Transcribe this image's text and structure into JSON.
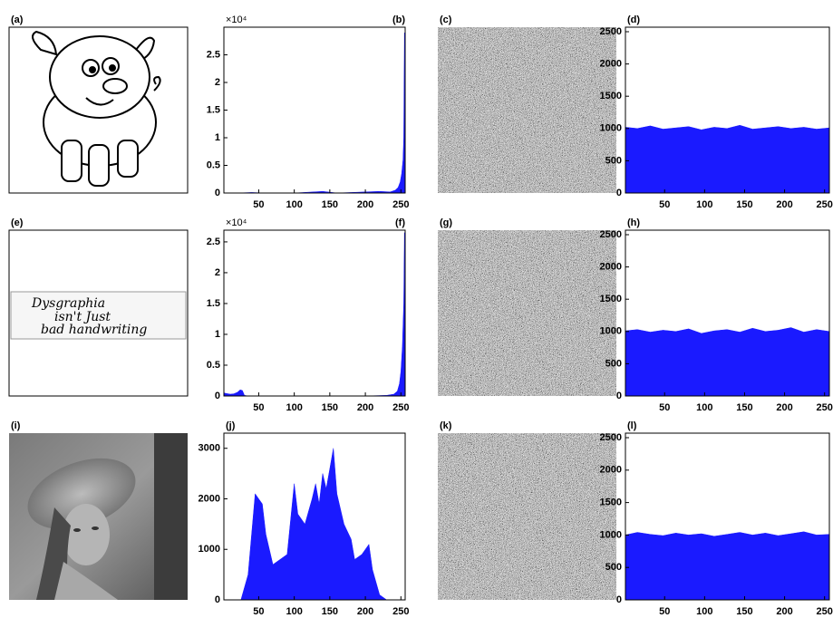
{
  "panels": [
    {
      "label": "(a)"
    },
    {
      "label": "(c)"
    },
    {
      "label": "(e)",
      "text_lines": [
        "Dysgraphia",
        "isn't Just",
        "bad handwriting"
      ]
    },
    {
      "label": "(g)"
    },
    {
      "label": "(i)"
    },
    {
      "label": "(k)"
    }
  ],
  "chart_data": [
    {
      "type": "area",
      "label": "(b)",
      "offset_label": "×10⁴",
      "color": "#1a1aff",
      "x": [
        1,
        20,
        40,
        60,
        80,
        100,
        120,
        140,
        160,
        180,
        200,
        220,
        235,
        242,
        246,
        249,
        251,
        253,
        254,
        255,
        256
      ],
      "values": [
        0,
        0,
        100,
        0,
        0,
        0,
        150,
        300,
        0,
        100,
        200,
        300,
        200,
        500,
        1000,
        2000,
        3500,
        6000,
        10000,
        29000,
        0
      ],
      "xlim": [
        1,
        256
      ],
      "xticks": [
        50,
        100,
        150,
        200,
        250
      ],
      "ylim": [
        0,
        30000
      ],
      "yticks": [
        0,
        {
          "value": 5000,
          "label": "0.5"
        },
        {
          "value": 10000,
          "label": "1"
        },
        {
          "value": 15000,
          "label": "1.5"
        },
        {
          "value": 20000,
          "label": "2"
        },
        {
          "value": 25000,
          "label": "2.5"
        }
      ]
    },
    {
      "type": "area",
      "label": "(d)",
      "color": "#1a1aff",
      "x": [
        1,
        16,
        32,
        48,
        64,
        80,
        96,
        112,
        128,
        144,
        160,
        176,
        192,
        208,
        224,
        240,
        256
      ],
      "values": [
        1020,
        1000,
        1040,
        990,
        1010,
        1030,
        980,
        1020,
        1000,
        1050,
        990,
        1010,
        1030,
        1000,
        1020,
        990,
        1010
      ],
      "xlim": [
        1,
        256
      ],
      "xticks": [
        50,
        100,
        150,
        200,
        250
      ],
      "ylim": [
        0,
        2570
      ],
      "yticks": [
        0,
        500,
        1000,
        1500,
        2000,
        2500
      ]
    },
    {
      "type": "area",
      "label": "(f)",
      "offset_label": "×10⁴",
      "color": "#1a1aff",
      "x": [
        1,
        5,
        10,
        15,
        20,
        24,
        27,
        30,
        35,
        40,
        60,
        100,
        150,
        200,
        230,
        240,
        245,
        248,
        250,
        252,
        254,
        255,
        256
      ],
      "values": [
        500,
        400,
        300,
        350,
        600,
        1000,
        900,
        100,
        0,
        0,
        0,
        0,
        0,
        0,
        100,
        300,
        800,
        2000,
        4000,
        8000,
        15000,
        26500,
        0
      ],
      "xlim": [
        1,
        256
      ],
      "xticks": [
        50,
        100,
        150,
        200,
        250
      ],
      "ylim": [
        0,
        26900
      ],
      "yticks": [
        0,
        {
          "value": 5000,
          "label": "0.5"
        },
        {
          "value": 10000,
          "label": "1"
        },
        {
          "value": 15000,
          "label": "1.5"
        },
        {
          "value": 20000,
          "label": "2"
        },
        {
          "value": 25000,
          "label": "2.5"
        }
      ]
    },
    {
      "type": "area",
      "label": "(h)",
      "color": "#1a1aff",
      "x": [
        1,
        16,
        32,
        48,
        64,
        80,
        96,
        112,
        128,
        144,
        160,
        176,
        192,
        208,
        224,
        240,
        256
      ],
      "values": [
        1010,
        1030,
        990,
        1020,
        1000,
        1040,
        970,
        1010,
        1030,
        990,
        1050,
        1000,
        1020,
        1060,
        990,
        1030,
        1000
      ],
      "xlim": [
        1,
        256
      ],
      "xticks": [
        50,
        100,
        150,
        200,
        250
      ],
      "ylim": [
        0,
        2570
      ],
      "yticks": [
        0,
        500,
        1000,
        1500,
        2000,
        2500
      ]
    },
    {
      "type": "area",
      "label": "(j)",
      "color": "#1a1aff",
      "x": [
        1,
        25,
        35,
        45,
        50,
        55,
        60,
        70,
        80,
        90,
        100,
        105,
        115,
        125,
        130,
        135,
        140,
        145,
        150,
        155,
        160,
        170,
        180,
        185,
        195,
        205,
        210,
        220,
        230,
        256
      ],
      "values": [
        0,
        0,
        500,
        2100,
        2000,
        1900,
        1300,
        700,
        800,
        900,
        2300,
        1700,
        1500,
        2000,
        2300,
        1900,
        2500,
        2200,
        2600,
        3000,
        2100,
        1500,
        1200,
        800,
        900,
        1100,
        600,
        100,
        0,
        0
      ],
      "xlim": [
        1,
        256
      ],
      "xticks": [
        50,
        100,
        150,
        200,
        250
      ],
      "ylim": [
        0,
        3300
      ],
      "yticks": [
        0,
        1000,
        2000,
        3000
      ]
    },
    {
      "type": "area",
      "label": "(l)",
      "color": "#1a1aff",
      "x": [
        1,
        16,
        32,
        48,
        64,
        80,
        96,
        112,
        128,
        144,
        160,
        176,
        192,
        208,
        224,
        240,
        256
      ],
      "values": [
        1000,
        1040,
        1010,
        990,
        1030,
        1000,
        1020,
        980,
        1010,
        1040,
        1000,
        1030,
        990,
        1020,
        1050,
        1000,
        1010
      ],
      "xlim": [
        1,
        256
      ],
      "xticks": [
        50,
        100,
        150,
        200,
        250
      ],
      "ylim": [
        0,
        2570
      ],
      "yticks": [
        0,
        500,
        1000,
        1500,
        2000,
        2500
      ]
    }
  ]
}
